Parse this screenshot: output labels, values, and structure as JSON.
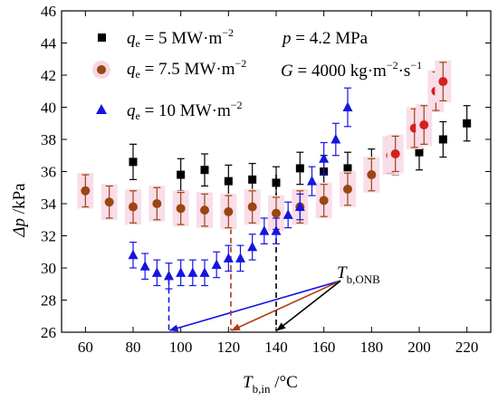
{
  "chart_data": {
    "type": "scatter",
    "xlabel_main": "T",
    "xlabel_sub": "b,in",
    "xlabel_unit": " /°C",
    "ylabel_main": "Δp",
    "ylabel_unit": " /kPa",
    "xlim": [
      50,
      230
    ],
    "ylim": [
      26,
      46
    ],
    "xticks": [
      60,
      80,
      100,
      120,
      140,
      160,
      180,
      200,
      220
    ],
    "yticks": [
      26,
      28,
      30,
      32,
      34,
      36,
      38,
      40,
      42,
      44,
      46
    ],
    "conditions": {
      "p": "p = 4.2 MPa",
      "G_main": "G = 4000 kg·m",
      "G_sup1": "−2",
      "G_mid": "·s",
      "G_sup2": "−1"
    },
    "series": [
      {
        "name": "q_e = 5 MW·m^-2",
        "legend_main": "q",
        "legend_sub": "e",
        "legend_rest": " = 5 MW·m",
        "legend_sup": "−2",
        "marker": "square",
        "color": "#000000",
        "errcolor": "#000000",
        "points": [
          {
            "x": 80,
            "y": 36.6,
            "err": 1.1
          },
          {
            "x": 100,
            "y": 35.8,
            "err": 1.0
          },
          {
            "x": 110,
            "y": 36.1,
            "err": 1.0
          },
          {
            "x": 120,
            "y": 35.4,
            "err": 1.0
          },
          {
            "x": 130,
            "y": 35.5,
            "err": 1.0
          },
          {
            "x": 140,
            "y": 35.3,
            "err": 1.0
          },
          {
            "x": 150,
            "y": 36.2,
            "err": 1.0
          },
          {
            "x": 160,
            "y": 36.0,
            "err": 1.0
          },
          {
            "x": 170,
            "y": 36.2,
            "err": 1.0
          },
          {
            "x": 180,
            "y": 36.4,
            "err": 1.0
          },
          {
            "x": 190,
            "y": 36.8,
            "err": 1.0
          },
          {
            "x": 200,
            "y": 37.2,
            "err": 1.1
          },
          {
            "x": 210,
            "y": 38.0,
            "err": 1.1
          },
          {
            "x": 220,
            "y": 39.0,
            "err": 1.1
          }
        ]
      },
      {
        "name": "q_e = 7.5 MW·m^-2",
        "legend_main": "q",
        "legend_sub": "e",
        "legend_rest": " = 7.5 MW·m",
        "legend_sup": "−2",
        "marker": "circle",
        "color": "#9b4513",
        "errcolor": "#9b4513",
        "points": [
          {
            "x": 60,
            "y": 34.8,
            "err": 1.0
          },
          {
            "x": 70,
            "y": 34.1,
            "err": 1.0
          },
          {
            "x": 80,
            "y": 33.8,
            "err": 1.0
          },
          {
            "x": 90,
            "y": 34.0,
            "err": 1.0
          },
          {
            "x": 100,
            "y": 33.7,
            "err": 1.0
          },
          {
            "x": 110,
            "y": 33.6,
            "err": 1.0
          },
          {
            "x": 120,
            "y": 33.5,
            "err": 1.0
          },
          {
            "x": 130,
            "y": 33.8,
            "err": 1.0
          },
          {
            "x": 140,
            "y": 33.4,
            "err": 1.0
          },
          {
            "x": 150,
            "y": 33.8,
            "err": 1.0
          },
          {
            "x": 160,
            "y": 34.2,
            "err": 1.0
          },
          {
            "x": 170,
            "y": 34.9,
            "err": 1.0
          },
          {
            "x": 180,
            "y": 35.8,
            "err": 1.0
          },
          {
            "x": 188,
            "y": 37.0,
            "err": 1.1
          },
          {
            "x": 190,
            "y": 37.1,
            "err": 1.1
          },
          {
            "x": 198,
            "y": 38.7,
            "err": 1.2
          },
          {
            "x": 202,
            "y": 38.9,
            "err": 1.2
          },
          {
            "x": 207,
            "y": 41.0,
            "err": 1.2
          },
          {
            "x": 210,
            "y": 41.6,
            "err": 1.2
          }
        ]
      },
      {
        "name": "q_e = 10 MW·m^-2",
        "legend_main": "q",
        "legend_sub": "e",
        "legend_rest": " = 10 MW·m",
        "legend_sup": "−2",
        "marker": "triangle",
        "color": "#1515e0",
        "errcolor": "#1515e0",
        "points": [
          {
            "x": 80,
            "y": 30.8,
            "err": 0.8
          },
          {
            "x": 85,
            "y": 30.1,
            "err": 0.8
          },
          {
            "x": 90,
            "y": 29.7,
            "err": 0.8
          },
          {
            "x": 95,
            "y": 29.5,
            "err": 0.8
          },
          {
            "x": 100,
            "y": 29.7,
            "err": 0.8
          },
          {
            "x": 105,
            "y": 29.7,
            "err": 0.8
          },
          {
            "x": 110,
            "y": 29.7,
            "err": 0.8
          },
          {
            "x": 115,
            "y": 30.2,
            "err": 0.8
          },
          {
            "x": 120,
            "y": 30.6,
            "err": 0.8
          },
          {
            "x": 125,
            "y": 30.6,
            "err": 0.8
          },
          {
            "x": 130,
            "y": 31.3,
            "err": 0.8
          },
          {
            "x": 135,
            "y": 32.3,
            "err": 0.8
          },
          {
            "x": 140,
            "y": 32.3,
            "err": 0.8
          },
          {
            "x": 145,
            "y": 33.3,
            "err": 0.8
          },
          {
            "x": 150,
            "y": 33.8,
            "err": 0.8
          },
          {
            "x": 155,
            "y": 35.4,
            "err": 0.9
          },
          {
            "x": 160,
            "y": 36.8,
            "err": 1.0
          },
          {
            "x": 165,
            "y": 38.0,
            "err": 1.0
          },
          {
            "x": 170,
            "y": 40.0,
            "err": 1.2
          }
        ]
      }
    ],
    "onb_markers": [
      {
        "x": 95,
        "color": "#1515e0"
      },
      {
        "x": 121,
        "color": "#b03a10"
      },
      {
        "x": 140,
        "color": "#000000"
      }
    ],
    "annotation": {
      "main": "T",
      "sub": "b,ONB",
      "anchor_x": 167,
      "anchor_y": 29.2
    }
  }
}
